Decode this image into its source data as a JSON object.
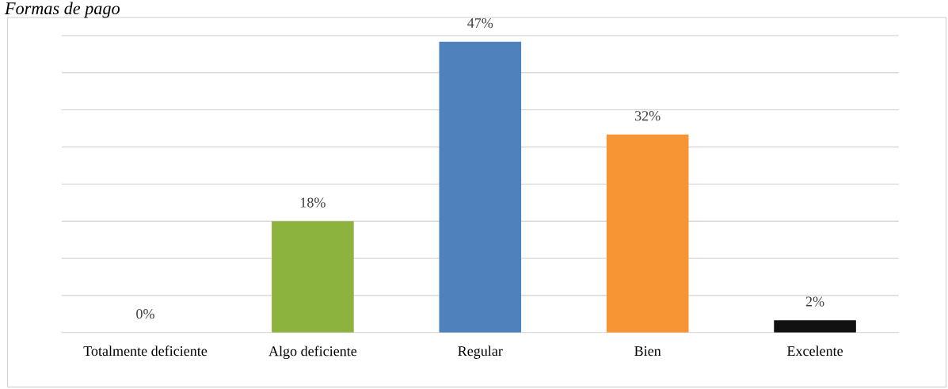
{
  "chart_data": {
    "type": "bar",
    "title": "Formas de pago",
    "categories": [
      "Totalmente deficiente",
      "Algo deficiente",
      "Regular",
      "Bien",
      "Excelente"
    ],
    "values": [
      0,
      18,
      47,
      32,
      2
    ],
    "value_labels": [
      "0%",
      "18%",
      "47%",
      "32%",
      "2%"
    ],
    "colors": [
      "#7f7f7f",
      "#8db33f",
      "#4f81bd",
      "#f79433",
      "#111111"
    ],
    "grid": "y",
    "tick_labels": "x"
  }
}
